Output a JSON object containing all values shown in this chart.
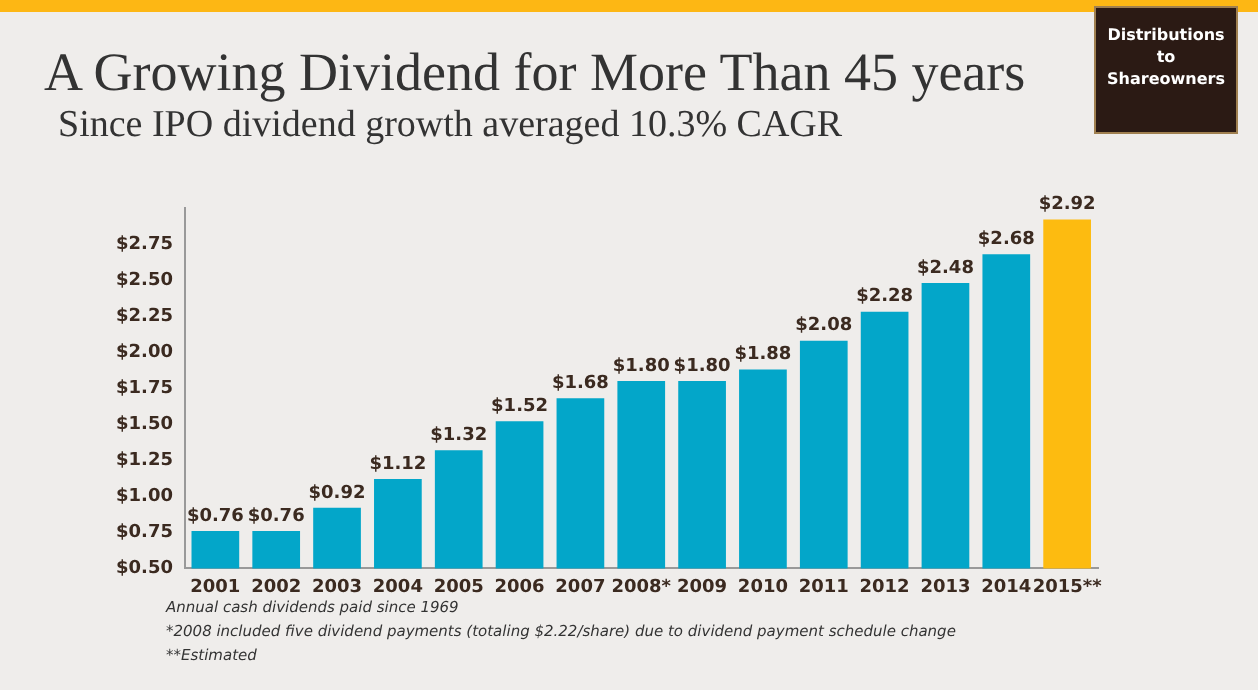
{
  "chart_data": {
    "type": "bar",
    "title": "A Growing Dividend for More Than 45 years",
    "subtitle": "Since IPO dividend growth averaged 10.3% CAGR",
    "categories": [
      "2001",
      "2002",
      "2003",
      "2004",
      "2005",
      "2006",
      "2007",
      "2008*",
      "2009",
      "2010",
      "2011",
      "2012",
      "2013",
      "2014",
      "2015**"
    ],
    "values": [
      0.76,
      0.76,
      0.92,
      1.12,
      1.32,
      1.52,
      1.68,
      1.8,
      1.8,
      1.88,
      2.08,
      2.28,
      2.48,
      2.68,
      2.92
    ],
    "colors": [
      "#03a6c9",
      "#03a6c9",
      "#03a6c9",
      "#03a6c9",
      "#03a6c9",
      "#03a6c9",
      "#03a6c9",
      "#03a6c9",
      "#03a6c9",
      "#03a6c9",
      "#03a6c9",
      "#03a6c9",
      "#03a6c9",
      "#03a6c9",
      "#fdbb10"
    ],
    "value_labels": [
      "$0.76",
      "$0.76",
      "$0.92",
      "$1.12",
      "$1.32",
      "$1.52",
      "$1.68",
      "$1.80",
      "$1.80",
      "$1.88",
      "$2.08",
      "$2.28",
      "$2.48",
      "$2.68",
      "$2.92"
    ],
    "ylim": [
      0.5,
      3.0
    ],
    "yticks": [
      {
        "value": 0.5,
        "label": "$0.50"
      },
      {
        "value": 0.75,
        "label": "$0.75"
      },
      {
        "value": 1.0,
        "label": "$1.00"
      },
      {
        "value": 1.25,
        "label": "$1.25"
      },
      {
        "value": 1.5,
        "label": "$1.50"
      },
      {
        "value": 1.75,
        "label": "$1.75"
      },
      {
        "value": 2.0,
        "label": "$2.00"
      },
      {
        "value": 2.25,
        "label": "$2.25"
      },
      {
        "value": 2.5,
        "label": "$2.50"
      },
      {
        "value": 2.75,
        "label": "$2.75"
      }
    ],
    "grid": false,
    "legend": false,
    "annotations": [
      "Distributions to Shareowners",
      "Annual cash dividends paid since 1969",
      "*2008 included five dividend payments (totaling $2.22/share) due to dividend payment schedule change",
      "**Estimated"
    ]
  }
}
